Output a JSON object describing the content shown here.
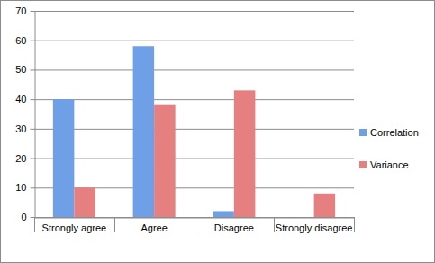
{
  "chart_data": {
    "type": "bar",
    "categories": [
      "Strongly agree",
      "Agree",
      "Disagree",
      "Strongly disagree"
    ],
    "series": [
      {
        "name": "Correlation",
        "color": "#6f9fe6",
        "values": [
          40,
          58,
          2,
          0
        ]
      },
      {
        "name": "Variance",
        "color": "#e57f80",
        "values": [
          10,
          38,
          43,
          8
        ]
      }
    ],
    "ylim": [
      0,
      70
    ],
    "yticks": [
      0,
      10,
      20,
      30,
      40,
      50,
      60,
      70
    ],
    "grid": true,
    "legend": "right"
  }
}
